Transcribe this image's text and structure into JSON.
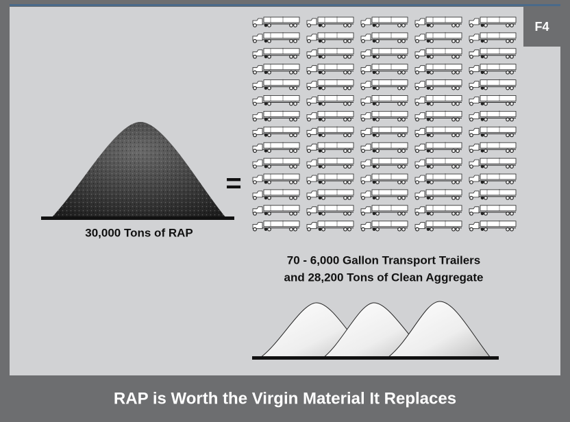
{
  "badge": "F4",
  "left": {
    "label": "30,000 Tons of RAP"
  },
  "equals": "=",
  "right": {
    "line1": "70 - 6,000 Gallon Transport Trailers",
    "line2": "and 28,200 Tons of Clean Aggregate"
  },
  "footer": "RAP is Worth the Virgin Material It Replaces"
}
